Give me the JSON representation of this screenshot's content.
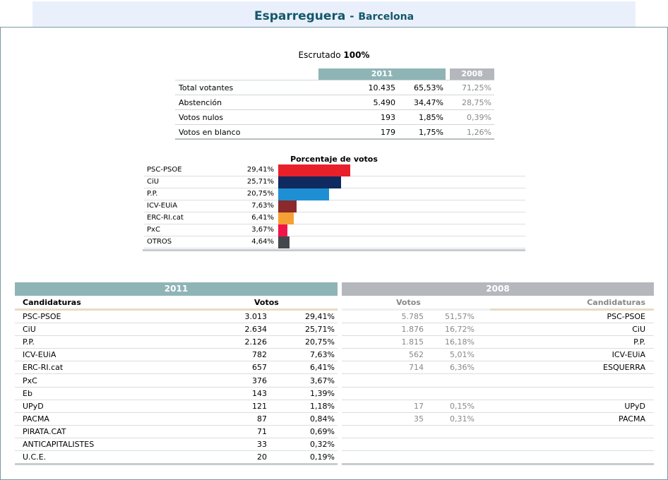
{
  "header": {
    "town": "Esparreguera",
    "dash": "-",
    "province": "Barcelona"
  },
  "escrutado": {
    "label": "Escrutado",
    "value": "100%"
  },
  "summary": {
    "year_current": "2011",
    "year_previous": "2008",
    "rows": [
      {
        "label": "Total votantes",
        "votes": "10.435",
        "pct": "65,53%",
        "pct_prev": "71,25%"
      },
      {
        "label": "Abstención",
        "votes": "5.490",
        "pct": "34,47%",
        "pct_prev": "28,75%"
      },
      {
        "label": "Votos nulos",
        "votes": "193",
        "pct": "1,85%",
        "pct_prev": "0,39%"
      },
      {
        "label": "Votos en blanco",
        "votes": "179",
        "pct": "1,75%",
        "pct_prev": "1,26%"
      }
    ]
  },
  "chart_data": {
    "type": "bar",
    "title": "Porcentaje de votos",
    "categories": [
      "PSC-PSOE",
      "CiU",
      "P.P.",
      "ICV-EUiA",
      "ERC-RI.cat",
      "PxC",
      "OTROS"
    ],
    "values": [
      29.41,
      25.71,
      20.75,
      7.63,
      6.41,
      3.67,
      4.64
    ],
    "labels": [
      "29,41%",
      "25,71%",
      "20,75%",
      "7,63%",
      "6,41%",
      "3,67%",
      "4,64%"
    ],
    "colors": [
      "#e8202a",
      "#0e2a5e",
      "#1f8fd4",
      "#8a2a2a",
      "#f5a035",
      "#f0144a",
      "#44484c"
    ],
    "orientation": "horizontal"
  },
  "results": {
    "year_current": "2011",
    "year_previous": "2008",
    "col_candidaturas": "Candidaturas",
    "col_votos": "Votos",
    "rows_2011": [
      {
        "name": "PSC-PSOE",
        "votes": "3.013",
        "pct": "29,41%"
      },
      {
        "name": "CiU",
        "votes": "2.634",
        "pct": "25,71%"
      },
      {
        "name": "P.P.",
        "votes": "2.126",
        "pct": "20,75%"
      },
      {
        "name": "ICV-EUiA",
        "votes": "782",
        "pct": "7,63%"
      },
      {
        "name": "ERC-RI.cat",
        "votes": "657",
        "pct": "6,41%"
      },
      {
        "name": "PxC",
        "votes": "376",
        "pct": "3,67%"
      },
      {
        "name": "Eb",
        "votes": "143",
        "pct": "1,39%"
      },
      {
        "name": "UPyD",
        "votes": "121",
        "pct": "1,18%"
      },
      {
        "name": "PACMA",
        "votes": "87",
        "pct": "0,84%"
      },
      {
        "name": "PIRATA.CAT",
        "votes": "71",
        "pct": "0,69%"
      },
      {
        "name": "ANTICAPITALISTES",
        "votes": "33",
        "pct": "0,32%"
      },
      {
        "name": "U.C.E.",
        "votes": "20",
        "pct": "0,19%"
      }
    ],
    "rows_2008": [
      {
        "name": "PSC-PSOE",
        "votes": "5.785",
        "pct": "51,57%"
      },
      {
        "name": "CiU",
        "votes": "1.876",
        "pct": "16,72%"
      },
      {
        "name": "P.P.",
        "votes": "1.815",
        "pct": "16,18%"
      },
      {
        "name": "ICV-EUiA",
        "votes": "562",
        "pct": "5,01%"
      },
      {
        "name": "ESQUERRA",
        "votes": "714",
        "pct": "6,36%"
      },
      {
        "name": "",
        "votes": "",
        "pct": ""
      },
      {
        "name": "",
        "votes": "",
        "pct": ""
      },
      {
        "name": "UPyD",
        "votes": "17",
        "pct": "0,15%"
      },
      {
        "name": "PACMA",
        "votes": "35",
        "pct": "0,31%"
      },
      {
        "name": "",
        "votes": "",
        "pct": ""
      },
      {
        "name": "",
        "votes": "",
        "pct": ""
      },
      {
        "name": "",
        "votes": "",
        "pct": ""
      }
    ]
  },
  "colors": {
    "header_2011": "#8fb4b6",
    "header_2008": "#b4b8bd",
    "title_text": "#13576a",
    "title_bg": "#eaf0fb"
  }
}
